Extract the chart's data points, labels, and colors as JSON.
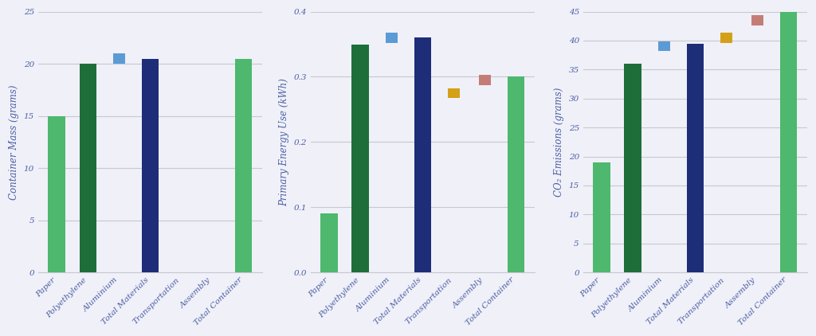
{
  "categories": [
    "Paper",
    "Polyethylene",
    "Aluminium",
    "Total Materials",
    "Transportation",
    "Assembly",
    "Total Container"
  ],
  "chart1": {
    "ylabel": "Container Mass (grams)",
    "ylim": [
      0,
      25
    ],
    "yticks": [
      0,
      5,
      10,
      15,
      20,
      25
    ],
    "bars": [
      15.0,
      20.0,
      0,
      20.5,
      0,
      0,
      20.5
    ],
    "bar_colors": [
      "#4db86e",
      "#1e6e3a",
      "#ffffff",
      "#1e2d78",
      "#ffffff",
      "#ffffff",
      "#4db86e"
    ],
    "markers": [
      null,
      null,
      20.5,
      null,
      null,
      null,
      null
    ],
    "marker_colors": [
      null,
      null,
      "#5b9bd5",
      null,
      null,
      null,
      null
    ],
    "marker_is_top": [
      false,
      false,
      false,
      false,
      false,
      false,
      false
    ]
  },
  "chart2": {
    "ylabel": "Primary Energy Use (kWh)",
    "ylim": [
      0.0,
      0.4
    ],
    "yticks": [
      0.0,
      0.1,
      0.2,
      0.3,
      0.4
    ],
    "yticklabels": [
      "0.0",
      "0.1",
      "0.2",
      "0.3",
      "0.4"
    ],
    "bars": [
      0.09,
      0.35,
      0,
      0.36,
      0,
      0,
      0.3
    ],
    "bar_colors": [
      "#4db86e",
      "#1e6e3a",
      "#ffffff",
      "#1e2d78",
      "#ffffff",
      "#ffffff",
      "#4db86e"
    ],
    "markers": [
      null,
      null,
      0.36,
      null,
      0.275,
      0.295,
      null
    ],
    "marker_colors": [
      null,
      null,
      "#5b9bd5",
      null,
      "#d4a017",
      "#c47d76",
      null
    ],
    "marker_is_top": [
      false,
      false,
      false,
      false,
      true,
      true,
      false
    ]
  },
  "chart3": {
    "ylabel": "CO₂ Emissions (grams)",
    "ylim": [
      0,
      45
    ],
    "yticks": [
      0,
      5,
      10,
      15,
      20,
      25,
      30,
      35,
      40,
      45
    ],
    "bars": [
      19.0,
      36.0,
      0,
      39.5,
      0,
      0,
      45.0
    ],
    "bar_colors": [
      "#4db86e",
      "#1e6e3a",
      "#ffffff",
      "#1e2d78",
      "#ffffff",
      "#ffffff",
      "#4db86e"
    ],
    "markers": [
      null,
      null,
      39.0,
      null,
      40.5,
      43.5,
      null
    ],
    "marker_colors": [
      null,
      null,
      "#5b9bd5",
      null,
      "#d4a017",
      "#c47d76",
      null
    ],
    "marker_is_top": [
      false,
      false,
      false,
      false,
      true,
      true,
      false
    ]
  },
  "text_color": "#4a5fa5",
  "grid_color": "#c8c8d0",
  "bg_color": "#f0f0f8",
  "bar_width": 0.55,
  "figsize": [
    10.24,
    4.22
  ],
  "dpi": 100,
  "font_size_tick": 7.5,
  "font_size_ylabel": 8.5
}
